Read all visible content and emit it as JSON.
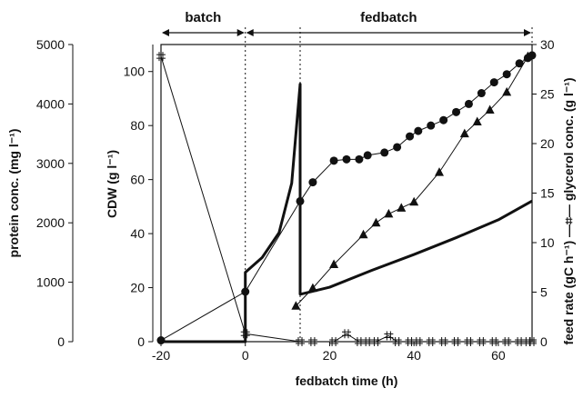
{
  "chart_data": {
    "type": "scatter",
    "xlabel": "fedbatch time (h)",
    "ylabel_left": "CDW (g l⁻¹)",
    "ylabel_far_left": "protein conc.  (mg l⁻¹)",
    "ylabel_right": "feed rate (gC h⁻¹)  —⌗— glycerol conc. (g l⁻¹)",
    "xlim": [
      -20,
      68
    ],
    "xticks": [
      "-20",
      "0",
      "20",
      "40",
      "60"
    ],
    "ylim_cdw": [
      0,
      110
    ],
    "yticks_cdw": [
      "0",
      "20",
      "40",
      "60",
      "80",
      "100"
    ],
    "ylim_protein": [
      0,
      5000
    ],
    "yticks_protein": [
      "0",
      "1000",
      "2000",
      "3000",
      "4000",
      "5000"
    ],
    "ylim_right": [
      0,
      30
    ],
    "yticks_right": [
      "0",
      "5",
      "10",
      "15",
      "20",
      "25",
      "30"
    ],
    "phases": [
      {
        "label": "batch",
        "from": -20,
        "to": 0
      },
      {
        "label": "fedbatch",
        "from": 0,
        "to": 68
      }
    ],
    "series": [
      {
        "kind": "cdw",
        "axis": "cdw",
        "marker": "circle",
        "x": [
          -20,
          0,
          13,
          16,
          21,
          24,
          27,
          29,
          33,
          36,
          39,
          41,
          44,
          47,
          50,
          53,
          56,
          59,
          62,
          65,
          67,
          68
        ],
        "y": [
          0.5,
          18.5,
          52,
          59,
          67,
          67.5,
          67.5,
          69,
          70,
          72,
          76,
          78,
          80,
          82,
          85,
          88,
          92,
          96,
          99,
          103,
          105,
          106
        ]
      },
      {
        "kind": "protein",
        "axis": "protein",
        "marker": "triangle",
        "x": [
          12,
          16,
          21,
          28,
          31,
          34,
          37,
          40,
          46,
          52,
          55,
          58,
          62,
          67
        ],
        "y": [
          600,
          900,
          1300,
          1800,
          2000,
          2150,
          2250,
          2350,
          2850,
          3500,
          3700,
          3900,
          4200,
          4800
        ]
      },
      {
        "kind": "glycerol",
        "axis": "right",
        "marker": "hash",
        "x": [
          -20,
          0,
          13,
          16,
          21,
          24,
          27,
          29,
          31,
          34,
          36,
          39,
          41,
          44,
          47,
          50,
          53,
          56,
          59,
          62,
          65,
          67,
          68
        ],
        "y": [
          28.8,
          0.8,
          0,
          0,
          0,
          0.8,
          0,
          0,
          0,
          0.6,
          0,
          0,
          0,
          0,
          0,
          0,
          0,
          0,
          0,
          0,
          0,
          0,
          0
        ]
      },
      {
        "kind": "feed_rate",
        "axis": "right",
        "marker": "line",
        "x": [
          -20,
          0,
          0,
          4,
          8,
          11,
          13,
          13,
          13.2,
          20,
          30,
          40,
          50,
          60,
          68
        ],
        "y": [
          0,
          0,
          7,
          8.5,
          11,
          16,
          26,
          4.8,
          4.8,
          5.5,
          7.2,
          8.8,
          10.5,
          12.3,
          14.2
        ]
      }
    ]
  }
}
